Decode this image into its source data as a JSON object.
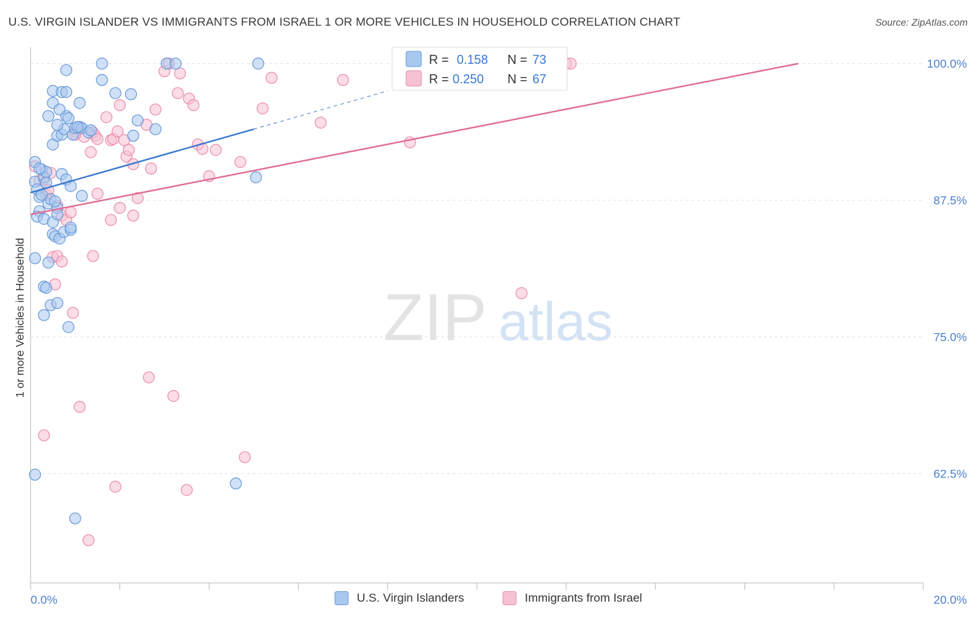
{
  "header": {
    "title": "U.S. VIRGIN ISLANDER VS IMMIGRANTS FROM ISRAEL 1 OR MORE VEHICLES IN HOUSEHOLD CORRELATION CHART",
    "source": "Source: ZipAtlas.com"
  },
  "watermark": {
    "zip": "ZIP",
    "atlas": "atlas"
  },
  "colors": {
    "blue_fill": "#a9c8f0",
    "blue_stroke": "#6c9bd8",
    "blue_line": "#3a78d0",
    "pink_fill": "#f6c1d2",
    "pink_stroke": "#eb8faf",
    "pink_line": "#e06a96",
    "tick_label": "#4a7fcf"
  },
  "legend": {
    "rows": [
      {
        "r_label": "R =",
        "r_value": "0.158",
        "n_label": "N =",
        "n_value": "73"
      },
      {
        "r_label": "R =",
        "r_value": "0.250",
        "n_label": "N =",
        "n_value": "67"
      }
    ]
  },
  "bottom_legend": {
    "items": [
      "U.S. Virgin Islanders",
      "Immigrants from Israel"
    ]
  },
  "chart_data": {
    "type": "scatter",
    "title": "U.S. VIRGIN ISLANDER VS IMMIGRANTS FROM ISRAEL 1 OR MORE VEHICLES IN HOUSEHOLD CORRELATION CHART",
    "xlabel": "",
    "ylabel": "1 or more Vehicles in Household",
    "xlim": [
      0,
      20
    ],
    "ylim": [
      52.5,
      101.5
    ],
    "x_tick_labels": [
      "0.0%",
      "20.0%"
    ],
    "y_ticks": [
      100,
      87.5,
      75,
      62.5
    ],
    "y_tick_labels": [
      "100.0%",
      "87.5%",
      "75.0%",
      "62.5%"
    ],
    "series": [
      {
        "name": "U.S. Virgin Islanders",
        "R": 0.158,
        "N": 73,
        "trend": {
          "x": [
            0,
            5.0
          ],
          "y": [
            88.2,
            94.0
          ],
          "dashed_to": [
            8.0,
            97.5
          ]
        },
        "points": [
          [
            0.1,
            89.2
          ],
          [
            0.15,
            88.5
          ],
          [
            0.2,
            87.8
          ],
          [
            0.1,
            91.0
          ],
          [
            0.25,
            90.3
          ],
          [
            0.3,
            89.6
          ],
          [
            0.35,
            90.1
          ],
          [
            0.2,
            86.5
          ],
          [
            0.15,
            86.0
          ],
          [
            0.3,
            85.8
          ],
          [
            0.4,
            87.2
          ],
          [
            0.45,
            87.6
          ],
          [
            0.6,
            86.8
          ],
          [
            0.7,
            89.9
          ],
          [
            0.8,
            89.4
          ],
          [
            0.9,
            88.8
          ],
          [
            1.15,
            87.9
          ],
          [
            0.5,
            84.4
          ],
          [
            0.55,
            84.2
          ],
          [
            0.65,
            84.0
          ],
          [
            0.75,
            84.6
          ],
          [
            0.9,
            84.8
          ],
          [
            0.4,
            81.8
          ],
          [
            0.3,
            79.6
          ],
          [
            0.35,
            79.5
          ],
          [
            0.45,
            77.9
          ],
          [
            0.6,
            78.1
          ],
          [
            0.3,
            77.0
          ],
          [
            0.85,
            75.9
          ],
          [
            0.5,
            92.6
          ],
          [
            0.6,
            93.4
          ],
          [
            0.7,
            93.5
          ],
          [
            0.75,
            94.0
          ],
          [
            0.8,
            95.2
          ],
          [
            0.95,
            93.5
          ],
          [
            1.0,
            94.1
          ],
          [
            1.1,
            94.2
          ],
          [
            1.15,
            94.1
          ],
          [
            1.3,
            93.7
          ],
          [
            1.35,
            93.9
          ],
          [
            0.4,
            95.2
          ],
          [
            0.5,
            96.4
          ],
          [
            0.6,
            94.4
          ],
          [
            0.65,
            95.8
          ],
          [
            0.85,
            95.0
          ],
          [
            1.05,
            94.2
          ],
          [
            0.5,
            97.5
          ],
          [
            0.7,
            97.4
          ],
          [
            0.8,
            97.4
          ],
          [
            1.1,
            96.4
          ],
          [
            0.8,
            99.4
          ],
          [
            1.6,
            98.5
          ],
          [
            1.9,
            97.3
          ],
          [
            1.6,
            100.0
          ],
          [
            2.4,
            94.8
          ],
          [
            2.8,
            94.0
          ],
          [
            3.05,
            100.0
          ],
          [
            3.25,
            100.0
          ],
          [
            5.05,
            89.6
          ],
          [
            5.1,
            100.0
          ],
          [
            2.3,
            93.4
          ],
          [
            2.25,
            97.2
          ],
          [
            0.1,
            82.2
          ],
          [
            0.1,
            62.4
          ],
          [
            1.0,
            58.4
          ],
          [
            4.6,
            61.6
          ],
          [
            0.2,
            90.4
          ],
          [
            0.35,
            89.1
          ],
          [
            0.5,
            85.5
          ],
          [
            0.6,
            86.2
          ],
          [
            0.25,
            88.0
          ],
          [
            0.9,
            85.0
          ],
          [
            0.55,
            87.4
          ]
        ]
      },
      {
        "name": "Immigrants from Israel",
        "R": 0.25,
        "N": 67,
        "trend": {
          "x": [
            0,
            17.2
          ],
          "y": [
            86.2,
            100.0
          ]
        },
        "points": [
          [
            0.1,
            90.6
          ],
          [
            0.2,
            89.3
          ],
          [
            0.3,
            89.4
          ],
          [
            0.35,
            88.0
          ],
          [
            0.4,
            88.4
          ],
          [
            0.6,
            87.0
          ],
          [
            0.7,
            86.1
          ],
          [
            0.8,
            85.7
          ],
          [
            0.9,
            86.4
          ],
          [
            0.5,
            82.3
          ],
          [
            0.6,
            82.4
          ],
          [
            0.7,
            81.9
          ],
          [
            0.55,
            79.8
          ],
          [
            0.95,
            77.2
          ],
          [
            0.3,
            66.0
          ],
          [
            1.1,
            68.6
          ],
          [
            1.3,
            56.4
          ],
          [
            1.9,
            61.3
          ],
          [
            2.65,
            71.3
          ],
          [
            3.2,
            69.6
          ],
          [
            3.5,
            61.0
          ],
          [
            4.8,
            64.0
          ],
          [
            1.0,
            93.8
          ],
          [
            1.2,
            93.3
          ],
          [
            1.35,
            91.9
          ],
          [
            1.4,
            93.7
          ],
          [
            1.45,
            93.4
          ],
          [
            1.5,
            93.1
          ],
          [
            1.7,
            95.1
          ],
          [
            1.8,
            93.0
          ],
          [
            1.85,
            93.1
          ],
          [
            1.95,
            93.8
          ],
          [
            2.1,
            93.0
          ],
          [
            2.15,
            91.5
          ],
          [
            2.2,
            92.1
          ],
          [
            2.3,
            90.8
          ],
          [
            2.6,
            94.4
          ],
          [
            2.7,
            90.4
          ],
          [
            2.8,
            95.8
          ],
          [
            3.0,
            99.3
          ],
          [
            3.1,
            100.0
          ],
          [
            3.3,
            97.3
          ],
          [
            3.35,
            99.1
          ],
          [
            3.55,
            96.8
          ],
          [
            3.65,
            96.2
          ],
          [
            3.75,
            92.6
          ],
          [
            3.85,
            92.2
          ],
          [
            4.0,
            89.7
          ],
          [
            4.15,
            92.1
          ],
          [
            4.7,
            91.0
          ],
          [
            5.2,
            95.9
          ],
          [
            5.4,
            98.7
          ],
          [
            6.5,
            94.6
          ],
          [
            7.0,
            98.5
          ],
          [
            8.5,
            92.8
          ],
          [
            11.0,
            79.0
          ],
          [
            12.0,
            100.0
          ],
          [
            12.1,
            100.0
          ],
          [
            1.8,
            85.7
          ],
          [
            2.0,
            86.8
          ],
          [
            2.3,
            86.1
          ],
          [
            2.4,
            87.7
          ],
          [
            1.4,
            82.4
          ],
          [
            1.5,
            88.1
          ],
          [
            1.0,
            93.5
          ],
          [
            2.0,
            96.2
          ],
          [
            0.45,
            90.0
          ]
        ]
      }
    ]
  }
}
